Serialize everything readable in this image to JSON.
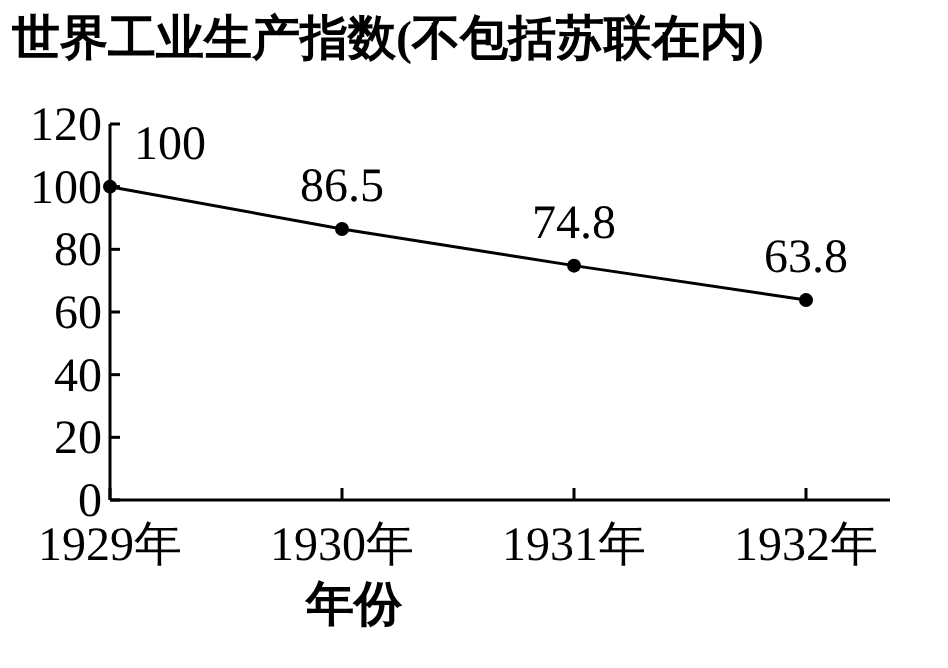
{
  "chart_data": {
    "type": "line",
    "title": "世界工业生产指数(不包括苏联在内)",
    "xlabel": "年份",
    "categories": [
      "1929年",
      "1930年",
      "1931年",
      "1932年"
    ],
    "series": [
      {
        "color": "#000000",
        "values": [
          100,
          86.5,
          74.8,
          63.8
        ]
      }
    ],
    "ylim": [
      0,
      120
    ],
    "yticks": [
      0,
      20,
      40,
      60,
      80,
      100,
      120
    ],
    "data_labels": true,
    "marker": "circle"
  }
}
